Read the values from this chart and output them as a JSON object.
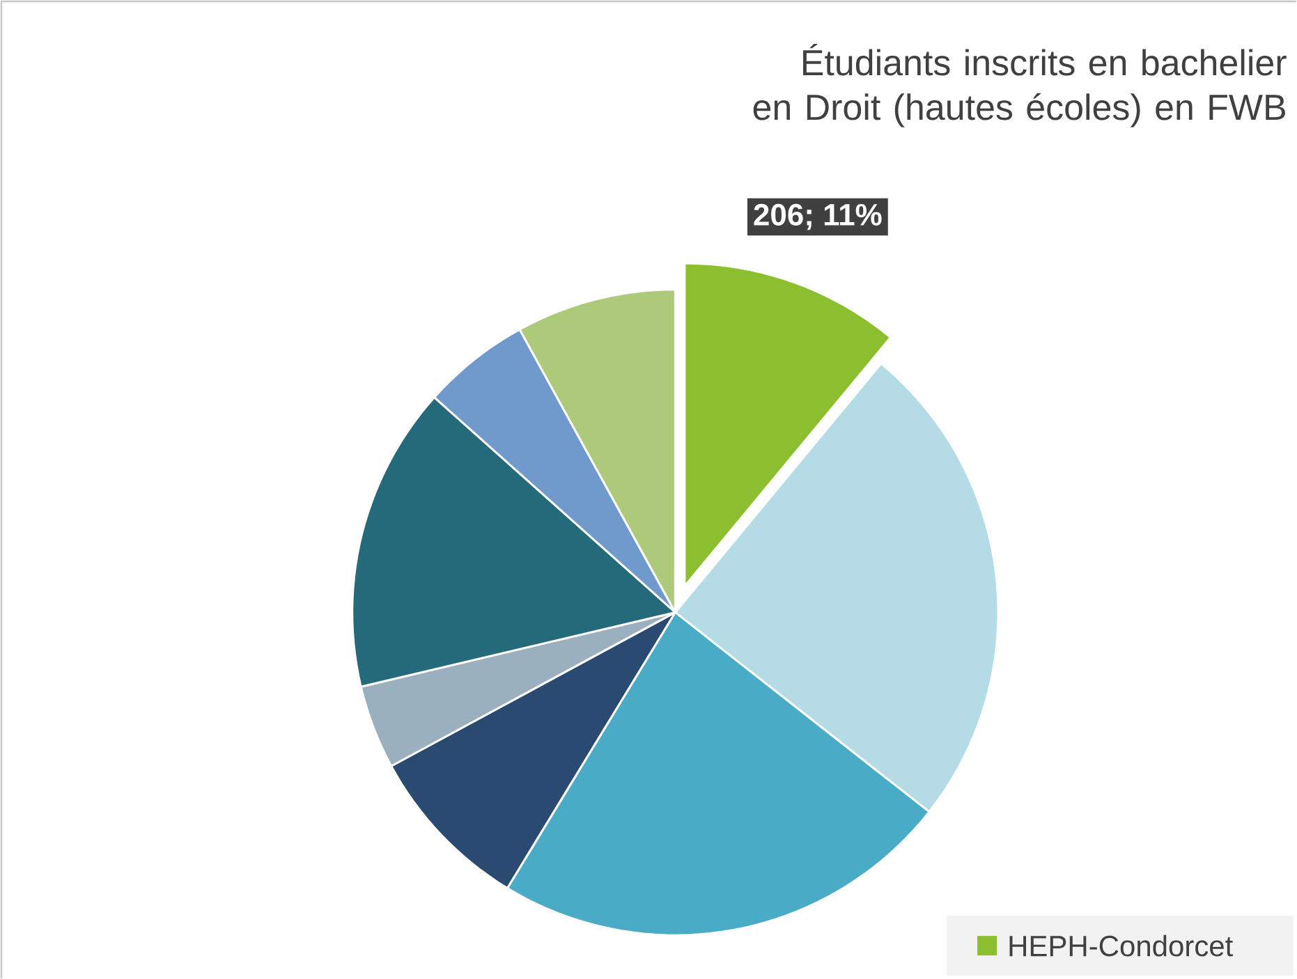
{
  "chart_data": {
    "type": "pie",
    "title": "Étudiants inscrits en bachelier en Droit (hautes écoles) en FWB",
    "categories": [
      "HEPH-Condorcet",
      null,
      null,
      null,
      null,
      null,
      null,
      null
    ],
    "values": [
      11,
      24.6,
      23.1,
      8.4,
      4.2,
      15.3,
      5.4,
      8.0
    ],
    "colors": [
      "#8bbf2f",
      "#b5dce6",
      "#4aabc6",
      "#2b4a72",
      "#9bb0bf",
      "#256a7a",
      "#7099cc",
      "#adc97a"
    ],
    "value_labels": [
      "206; 11%",
      null,
      null,
      null,
      null,
      null,
      null,
      null
    ],
    "legend": "bottom right"
  }
}
